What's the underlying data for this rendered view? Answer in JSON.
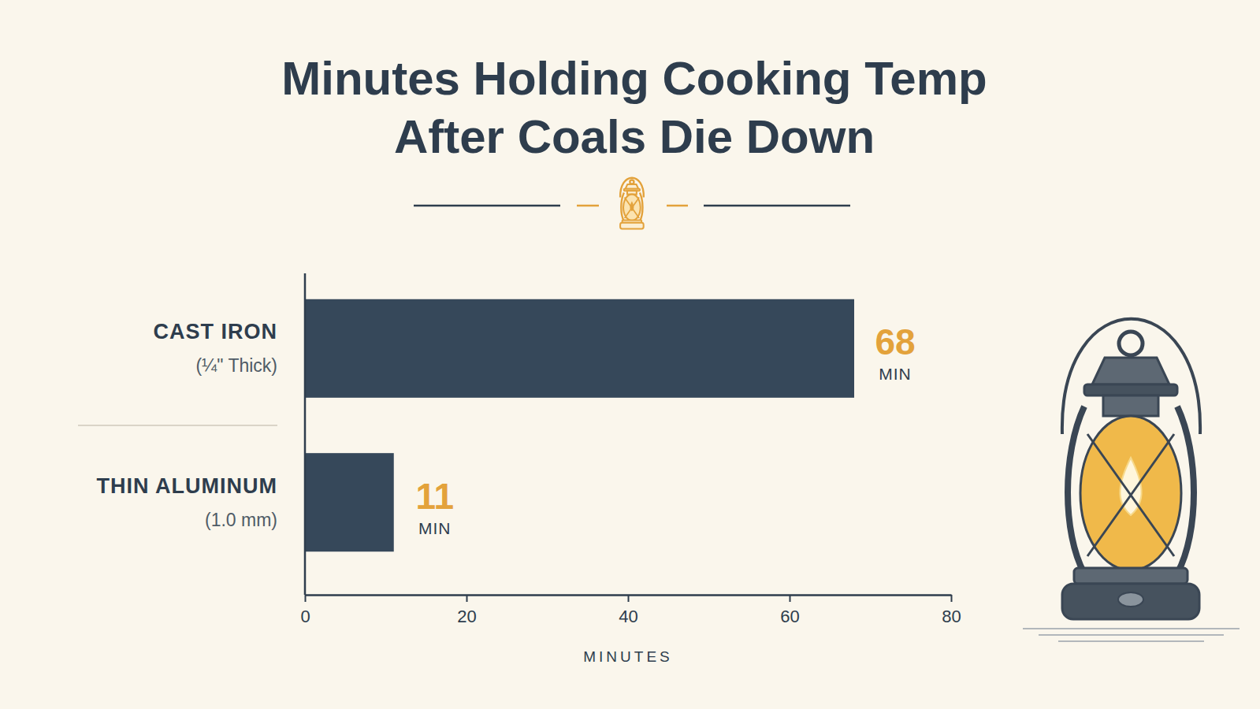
{
  "chart_data": {
    "type": "bar",
    "title": "Minutes Holding Cooking Temp After Coals Die Down",
    "orientation": "horizontal",
    "categories": [
      "CAST IRON",
      "THIN ALUMINUM"
    ],
    "category_details": [
      "(¼\" Thick)",
      "(1.0 mm)"
    ],
    "values": [
      68,
      11
    ],
    "value_unit": "MIN",
    "color": "#36485a",
    "xlabel": "MINUTES",
    "xlim": [
      0,
      80
    ],
    "xticks": [
      0,
      20,
      40,
      60,
      80
    ],
    "grid": false,
    "data_labels": true
  }
}
